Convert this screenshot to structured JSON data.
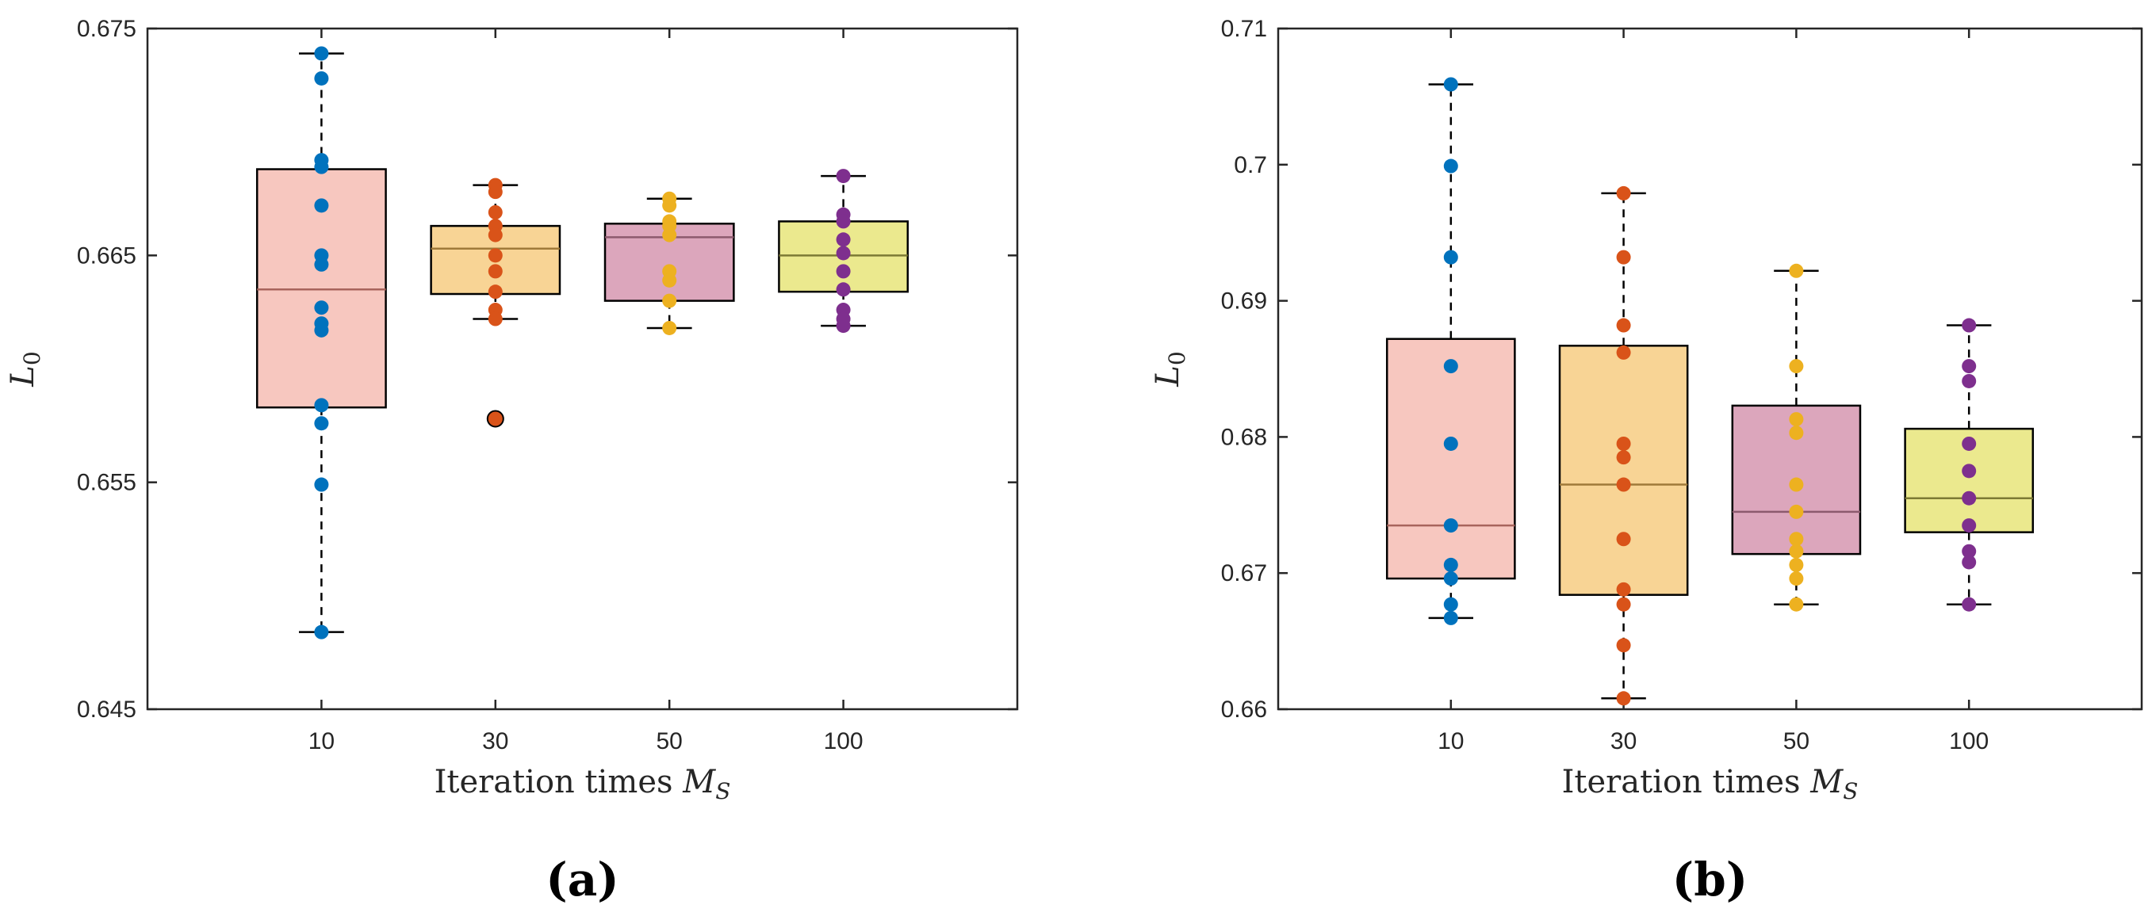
{
  "chart_data": [
    {
      "type": "boxplot",
      "panel_label": "(a)",
      "xlabel": "Iteration times M_S",
      "ylabel": "L_0",
      "ylim": [
        0.645,
        0.675
      ],
      "yticks": [
        "0.645",
        "0.655",
        "0.665",
        "0.675"
      ],
      "yticks_values": [
        0.645,
        0.655,
        0.665,
        0.675
      ],
      "categories": [
        "10",
        "30",
        "50",
        "100"
      ],
      "colors": [
        "#0072bd",
        "#d95319",
        "#edb120",
        "#7e2f8e"
      ],
      "box_fills": [
        "#f7c7bf",
        "#f8d495",
        "#dca6bc",
        "#ebe98e"
      ],
      "medians_color": [
        "#a8645c",
        "#a07a3a",
        "#8c5a6e",
        "#7c7a34"
      ],
      "boxes": [
        {
          "category": "10",
          "q1": 0.6583,
          "median": 0.6635,
          "q3": 0.6688,
          "whisker_low": 0.6484,
          "whisker_high": 0.6739,
          "points": [
            0.6739,
            0.6728,
            0.6692,
            0.6689,
            0.6672,
            0.665,
            0.6646,
            0.6627,
            0.662,
            0.6617,
            0.6584,
            0.6576,
            0.6549,
            0.6484
          ],
          "outliers": []
        },
        {
          "category": "30",
          "q1": 0.6633,
          "median": 0.6653,
          "q3": 0.6663,
          "whisker_low": 0.6622,
          "whisker_high": 0.6681,
          "points": [
            0.6681,
            0.6678,
            0.6669,
            0.6663,
            0.6659,
            0.665,
            0.6643,
            0.6634,
            0.6626,
            0.6622
          ],
          "outliers": [
            0.6578
          ]
        },
        {
          "category": "50",
          "q1": 0.663,
          "median": 0.6658,
          "q3": 0.6664,
          "whisker_low": 0.6618,
          "whisker_high": 0.6675,
          "points": [
            0.6675,
            0.6672,
            0.6665,
            0.6663,
            0.6659,
            0.6643,
            0.6639,
            0.663,
            0.6618
          ],
          "outliers": []
        },
        {
          "category": "100",
          "q1": 0.6634,
          "median": 0.665,
          "q3": 0.6665,
          "whisker_low": 0.6619,
          "whisker_high": 0.6685,
          "points": [
            0.6685,
            0.6668,
            0.6665,
            0.6657,
            0.6651,
            0.6643,
            0.6635,
            0.6626,
            0.6622,
            0.6619
          ],
          "outliers": []
        }
      ]
    },
    {
      "type": "boxplot",
      "panel_label": "(b)",
      "xlabel": "Iteration times M_S",
      "ylabel": "L_0",
      "ylim": [
        0.66,
        0.71
      ],
      "yticks": [
        "0.66",
        "0.67",
        "0.68",
        "0.69",
        "0.7",
        "0.71"
      ],
      "yticks_values": [
        0.66,
        0.67,
        0.68,
        0.69,
        0.7,
        0.71
      ],
      "categories": [
        "10",
        "30",
        "50",
        "100"
      ],
      "colors": [
        "#0072bd",
        "#d95319",
        "#edb120",
        "#7e2f8e"
      ],
      "box_fills": [
        "#f7c7bf",
        "#f8d495",
        "#dca6bc",
        "#ebe98e"
      ],
      "medians_color": [
        "#a8645c",
        "#a07a3a",
        "#8c5a6e",
        "#7c7a34"
      ],
      "boxes": [
        {
          "category": "10",
          "q1": 0.6696,
          "median": 0.6735,
          "q3": 0.6872,
          "whisker_low": 0.6667,
          "whisker_high": 0.7059,
          "points": [
            0.7059,
            0.6999,
            0.6932,
            0.6852,
            0.6795,
            0.6735,
            0.6706,
            0.6696,
            0.6677,
            0.6667
          ],
          "outliers": []
        },
        {
          "category": "30",
          "q1": 0.6684,
          "median": 0.6765,
          "q3": 0.6867,
          "whisker_low": 0.6608,
          "whisker_high": 0.6979,
          "points": [
            0.6979,
            0.6932,
            0.6882,
            0.6862,
            0.6795,
            0.6785,
            0.6765,
            0.6725,
            0.6688,
            0.6677,
            0.6647,
            0.6608
          ],
          "outliers": []
        },
        {
          "category": "50",
          "q1": 0.6714,
          "median": 0.6745,
          "q3": 0.6823,
          "whisker_low": 0.6677,
          "whisker_high": 0.6922,
          "points": [
            0.6922,
            0.6852,
            0.6813,
            0.6803,
            0.6765,
            0.6745,
            0.6725,
            0.6716,
            0.6706,
            0.6696,
            0.6677
          ],
          "outliers": []
        },
        {
          "category": "100",
          "q1": 0.673,
          "median": 0.6755,
          "q3": 0.6806,
          "whisker_low": 0.6677,
          "whisker_high": 0.6882,
          "points": [
            0.6882,
            0.6852,
            0.6841,
            0.6795,
            0.6775,
            0.6755,
            0.6735,
            0.6716,
            0.6708,
            0.6677
          ],
          "outliers": []
        }
      ]
    }
  ]
}
